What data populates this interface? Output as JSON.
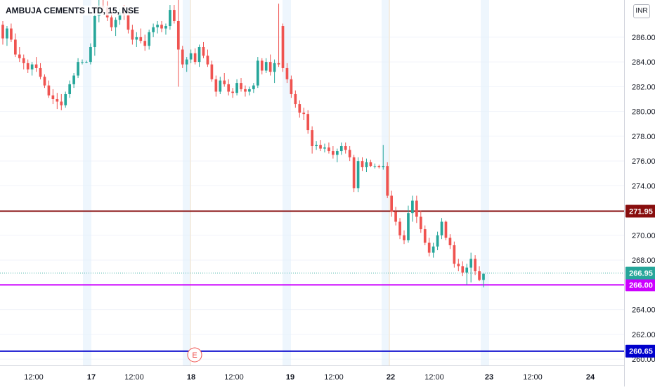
{
  "chart_data": {
    "type": "candlestick",
    "title": "AMBUJA CEMENTS LTD, 15, NSE",
    "currency": "INR",
    "y_range": [
      259.5,
      289.0
    ],
    "y_ticks": [
      "286.00",
      "284.00",
      "282.00",
      "280.00",
      "278.00",
      "276.00",
      "274.00",
      "272.00",
      "270.00",
      "268.00",
      "266.00",
      "264.00",
      "262.00",
      "260.00"
    ],
    "x_ticks": [
      "12:00",
      "17",
      "12:00",
      "18",
      "12:00",
      "19",
      "12:00",
      "22",
      "12:00",
      "23",
      "12:00",
      "24"
    ],
    "event_marker": "E",
    "horizontal_lines": [
      {
        "value": 271.95,
        "label": "271.95",
        "color": "#880e0e"
      },
      {
        "value": 266.0,
        "label": "266.00",
        "color": "#cc00ff"
      },
      {
        "value": 260.65,
        "label": "260.65",
        "color": "#0000cc"
      }
    ],
    "last_price": {
      "value": 266.95,
      "label": "266.95",
      "color": "#26a69a"
    },
    "up_color": "#26a69a",
    "down_color": "#ef5350",
    "candles": [
      [
        287.0,
        287.3,
        285.4,
        285.9
      ],
      [
        285.9,
        286.9,
        285.3,
        286.7
      ],
      [
        286.7,
        287.1,
        285.6,
        285.8
      ],
      [
        285.8,
        286.3,
        284.4,
        284.6
      ],
      [
        284.6,
        285.2,
        284.0,
        284.3
      ],
      [
        284.3,
        284.6,
        283.4,
        283.9
      ],
      [
        283.9,
        284.2,
        283.1,
        283.4
      ],
      [
        283.4,
        284.0,
        282.9,
        283.8
      ],
      [
        283.8,
        284.4,
        283.2,
        283.5
      ],
      [
        283.5,
        283.9,
        282.6,
        282.8
      ],
      [
        282.8,
        283.0,
        281.9,
        282.1
      ],
      [
        282.1,
        282.5,
        281.1,
        281.3
      ],
      [
        281.3,
        281.8,
        280.6,
        281.0
      ],
      [
        281.0,
        281.5,
        280.2,
        280.8
      ],
      [
        280.8,
        281.4,
        280.1,
        280.5
      ],
      [
        280.5,
        281.6,
        280.3,
        281.4
      ],
      [
        281.4,
        282.5,
        281.1,
        282.2
      ],
      [
        282.2,
        283.1,
        281.9,
        282.9
      ],
      [
        282.9,
        284.3,
        282.7,
        284.0
      ],
      [
        284.0,
        284.2,
        283.8,
        284.0
      ],
      [
        284.0,
        284.1,
        283.9,
        284.0
      ],
      [
        284.0,
        285.5,
        283.8,
        285.2
      ],
      [
        285.2,
        288.0,
        284.5,
        287.7
      ],
      [
        287.7,
        289.0,
        287.2,
        288.5
      ],
      [
        288.5,
        289.0,
        287.9,
        288.4
      ],
      [
        288.4,
        288.9,
        287.3,
        287.6
      ],
      [
        287.6,
        288.1,
        286.5,
        286.8
      ],
      [
        286.8,
        287.6,
        286.1,
        287.4
      ],
      [
        287.4,
        288.3,
        287.0,
        288.0
      ],
      [
        288.0,
        288.6,
        287.4,
        287.8
      ],
      [
        287.8,
        288.2,
        286.3,
        286.6
      ],
      [
        286.6,
        287.0,
        285.4,
        285.8
      ],
      [
        285.8,
        286.4,
        285.2,
        286.0
      ],
      [
        286.0,
        286.7,
        285.5,
        285.7
      ],
      [
        285.7,
        286.2,
        284.9,
        285.3
      ],
      [
        285.3,
        286.6,
        285.0,
        286.4
      ],
      [
        286.4,
        287.1,
        286.0,
        286.8
      ],
      [
        286.8,
        287.3,
        286.3,
        287.0
      ],
      [
        287.0,
        287.3,
        286.4,
        286.7
      ],
      [
        286.7,
        287.1,
        286.2,
        286.9
      ],
      [
        286.9,
        288.6,
        286.6,
        288.2
      ],
      [
        288.2,
        288.6,
        287.1,
        287.3
      ],
      [
        287.3,
        289.0,
        282.0,
        285.0
      ],
      [
        285.0,
        285.3,
        283.5,
        283.8
      ],
      [
        283.8,
        284.4,
        283.2,
        284.2
      ],
      [
        284.2,
        285.0,
        283.9,
        284.7
      ],
      [
        284.7,
        285.1,
        283.8,
        284.0
      ],
      [
        284.0,
        285.4,
        283.6,
        285.2
      ],
      [
        285.2,
        285.6,
        284.3,
        284.5
      ],
      [
        284.5,
        285.0,
        283.6,
        283.8
      ],
      [
        283.8,
        284.1,
        282.4,
        282.6
      ],
      [
        282.6,
        282.9,
        281.2,
        281.6
      ],
      [
        281.6,
        282.8,
        281.4,
        282.5
      ],
      [
        282.5,
        283.1,
        282.0,
        282.2
      ],
      [
        282.2,
        282.6,
        281.3,
        281.6
      ],
      [
        281.6,
        281.9,
        281.1,
        281.5
      ],
      [
        281.5,
        282.6,
        281.3,
        282.3
      ],
      [
        282.3,
        282.7,
        281.6,
        281.8
      ],
      [
        281.8,
        282.1,
        281.2,
        281.6
      ],
      [
        281.6,
        282.0,
        281.3,
        281.8
      ],
      [
        281.8,
        282.3,
        281.5,
        282.1
      ],
      [
        282.1,
        284.4,
        281.9,
        284.1
      ],
      [
        284.1,
        284.3,
        283.0,
        283.3
      ],
      [
        283.3,
        284.3,
        283.1,
        284.0
      ],
      [
        284.0,
        284.6,
        282.9,
        283.2
      ],
      [
        283.2,
        284.2,
        282.3,
        283.9
      ],
      [
        283.9,
        288.7,
        283.6,
        283.8
      ],
      [
        286.9,
        287.1,
        283.2,
        283.5
      ],
      [
        283.5,
        283.9,
        282.3,
        282.6
      ],
      [
        282.6,
        282.9,
        281.1,
        281.4
      ],
      [
        281.4,
        281.7,
        280.3,
        280.6
      ],
      [
        280.6,
        280.9,
        279.5,
        279.9
      ],
      [
        279.9,
        280.3,
        279.3,
        279.8
      ],
      [
        279.8,
        280.1,
        278.2,
        278.5
      ],
      [
        278.5,
        278.8,
        276.6,
        277.2
      ],
      [
        277.2,
        277.6,
        276.9,
        277.3
      ],
      [
        277.3,
        277.7,
        276.8,
        277.0
      ],
      [
        277.0,
        277.4,
        276.7,
        277.1
      ],
      [
        277.1,
        277.5,
        276.6,
        276.8
      ],
      [
        276.8,
        277.2,
        276.2,
        276.5
      ],
      [
        276.5,
        277.0,
        275.9,
        276.8
      ],
      [
        276.8,
        277.5,
        276.5,
        277.2
      ],
      [
        277.2,
        277.5,
        276.6,
        276.9
      ],
      [
        276.9,
        277.2,
        276.0,
        276.3
      ],
      [
        276.3,
        276.5,
        273.5,
        273.8
      ],
      [
        273.8,
        276.3,
        273.5,
        276.0
      ],
      [
        276.0,
        276.3,
        275.2,
        275.5
      ],
      [
        275.5,
        276.2,
        275.1,
        275.9
      ],
      [
        275.9,
        276.1,
        275.5,
        275.6
      ],
      [
        275.6,
        275.8,
        275.4,
        275.6
      ],
      [
        275.6,
        275.7,
        275.4,
        275.5
      ],
      [
        275.5,
        277.3,
        275.3,
        275.6
      ],
      [
        275.6,
        275.9,
        273.0,
        273.2
      ],
      [
        273.2,
        273.6,
        271.5,
        271.9
      ],
      [
        271.9,
        272.3,
        270.8,
        271.1
      ],
      [
        271.1,
        271.4,
        269.7,
        270.0
      ],
      [
        270.0,
        270.4,
        269.3,
        269.6
      ],
      [
        269.6,
        272.4,
        269.4,
        271.8
      ],
      [
        271.8,
        273.2,
        271.1,
        272.8
      ],
      [
        272.8,
        273.2,
        271.0,
        271.5
      ],
      [
        271.5,
        272.0,
        270.2,
        270.5
      ],
      [
        270.5,
        270.8,
        269.2,
        269.4
      ],
      [
        269.4,
        269.8,
        268.3,
        268.6
      ],
      [
        268.6,
        269.4,
        268.2,
        269.1
      ],
      [
        269.1,
        270.3,
        268.8,
        270.0
      ],
      [
        270.0,
        271.4,
        269.7,
        271.1
      ],
      [
        271.1,
        271.2,
        269.6,
        269.8
      ],
      [
        269.8,
        270.1,
        268.9,
        269.2
      ],
      [
        269.2,
        269.5,
        267.4,
        267.7
      ],
      [
        267.7,
        268.1,
        267.1,
        267.5
      ],
      [
        267.5,
        267.9,
        266.7,
        267.0
      ],
      [
        267.0,
        267.7,
        266.0,
        267.4
      ],
      [
        267.4,
        268.6,
        266.2,
        268.1
      ],
      [
        268.1,
        268.4,
        266.8,
        267.1
      ],
      [
        267.1,
        267.5,
        266.3,
        266.4
      ],
      [
        266.4,
        266.9,
        265.8,
        266.9
      ]
    ]
  }
}
